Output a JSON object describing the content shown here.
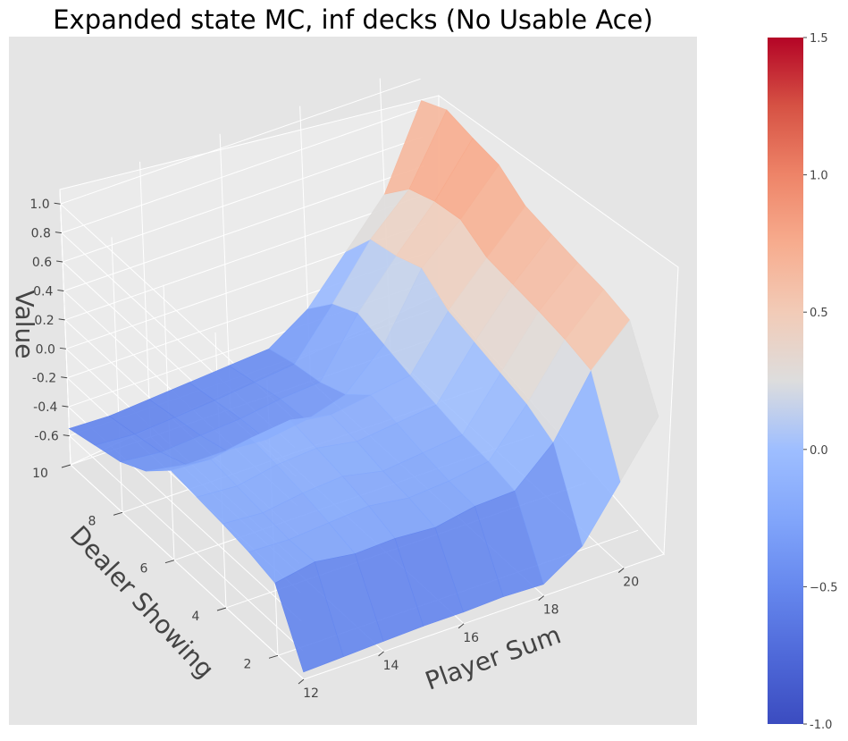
{
  "chart_data": {
    "type": "surface",
    "title": "Expanded state MC, inf decks (No Usable Ace)",
    "xlabel": "Player Sum",
    "ylabel": "Dealer Showing",
    "zlabel": "Value",
    "x_ticks": [
      "12",
      "14",
      "16",
      "18",
      "20"
    ],
    "y_ticks": [
      "2",
      "4",
      "6",
      "8",
      "10"
    ],
    "z_ticks": [
      "-0.6",
      "-0.4",
      "-0.2",
      "0.0",
      "0.2",
      "0.4",
      "0.6",
      "0.8",
      "1.0"
    ],
    "colorbar": {
      "colormap": "coolwarm",
      "range": [
        -1.0,
        1.5
      ],
      "ticks": [
        "-1.0",
        "−0.5",
        "0.0",
        "0.5",
        "1.0",
        "1.5"
      ],
      "low_color": "#3b4cc0",
      "mid_color": "#dddddd",
      "high_color": "#b40426"
    },
    "x": [
      12,
      13,
      14,
      15,
      16,
      17,
      18,
      19,
      20,
      21
    ],
    "y": [
      1,
      2,
      3,
      4,
      5,
      6,
      7,
      8,
      9,
      10
    ],
    "z": [
      [
        -0.75,
        -0.74,
        -0.73,
        -0.72,
        -0.72,
        -0.71,
        -0.72,
        -0.55,
        -0.2,
        0.15
      ],
      [
        -0.3,
        -0.25,
        -0.29,
        -0.28,
        -0.3,
        -0.25,
        -0.24,
        0.0,
        0.4,
        0.65
      ],
      [
        -0.25,
        -0.26,
        -0.24,
        -0.22,
        -0.26,
        -0.24,
        -0.2,
        0.1,
        0.45,
        0.7
      ],
      [
        -0.22,
        -0.24,
        -0.2,
        -0.18,
        -0.24,
        -0.21,
        -0.18,
        0.15,
        0.48,
        0.72
      ],
      [
        -0.2,
        -0.22,
        -0.17,
        -0.15,
        -0.2,
        -0.17,
        -0.14,
        0.2,
        0.5,
        0.75
      ],
      [
        -0.18,
        -0.2,
        -0.15,
        -0.12,
        -0.18,
        -0.14,
        -0.1,
        0.25,
        0.52,
        0.78
      ],
      [
        -0.35,
        -0.4,
        -0.4,
        -0.42,
        -0.38,
        -0.3,
        -0.05,
        0.38,
        0.62,
        0.9
      ],
      [
        -0.45,
        -0.48,
        -0.46,
        -0.44,
        -0.4,
        -0.38,
        0.0,
        0.3,
        0.58,
        0.92
      ],
      [
        -0.5,
        -0.52,
        -0.5,
        -0.48,
        -0.45,
        -0.42,
        -0.1,
        0.25,
        0.5,
        0.95
      ],
      [
        -0.55,
        -0.56,
        -0.54,
        -0.52,
        -0.5,
        -0.48,
        -0.3,
        0.0,
        0.3,
        0.85
      ]
    ]
  }
}
